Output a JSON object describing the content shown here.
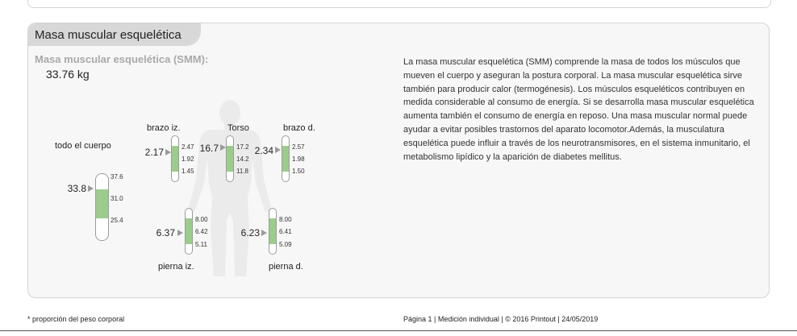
{
  "section": {
    "title": "Masa muscular esquelética",
    "smm_label": "Masa muscular esquelética (SMM):",
    "smm_value": "33.76 kg",
    "description": "La masa muscular esquelética (SMM) comprende la masa de todos los músculos que mueven el cuerpo y aseguran la postura corporal. La masa muscular esquelética sirve también para producir calor (termogénesis). Los músculos esqueléticos contribuyen en medida considerable al consumo de energía. Si se desarrolla masa muscular esquelética aumenta también el consumo de energía en reposo. Una masa muscular normal puede ayudar a evitar posibles trastornos del aparato locomotor.Además, la musculatura esquelética puede influir a través de los neurotransmisores, en el sistema inmunitario, el metabolismo lipídico y la aparición de diabetes mellitus."
  },
  "segments": {
    "whole": {
      "label": "todo el cuerpo",
      "value": "33.8",
      "upper": "37.6",
      "mid": "31.0",
      "lower": "25.4"
    },
    "left_arm": {
      "label": "brazo iz.",
      "value": "2.17",
      "upper": "2.47",
      "mid": "1.92",
      "lower": "1.45"
    },
    "torso": {
      "label": "Torso",
      "value": "16.7",
      "upper": "17.2",
      "mid": "14.2",
      "lower": "11.8"
    },
    "right_arm": {
      "label": "brazo d.",
      "value": "2.34",
      "upper": "2.57",
      "mid": "1.98",
      "lower": "1.50"
    },
    "left_leg": {
      "label": "pierna iz.",
      "value": "6.37",
      "upper": "8.00",
      "mid": "6.42",
      "lower": "5.11"
    },
    "right_leg": {
      "label": "pierna d.",
      "value": "6.23",
      "upper": "8.00",
      "mid": "6.41",
      "lower": "5.09"
    }
  },
  "colors": {
    "normal_range": "#9ccc8c",
    "silhouette": "#ebebeb"
  },
  "footer": {
    "note": "* proporción del peso corporal",
    "page_info": "Página 1 | Medición individual | © 2016 Printout | 24/05/2019"
  }
}
